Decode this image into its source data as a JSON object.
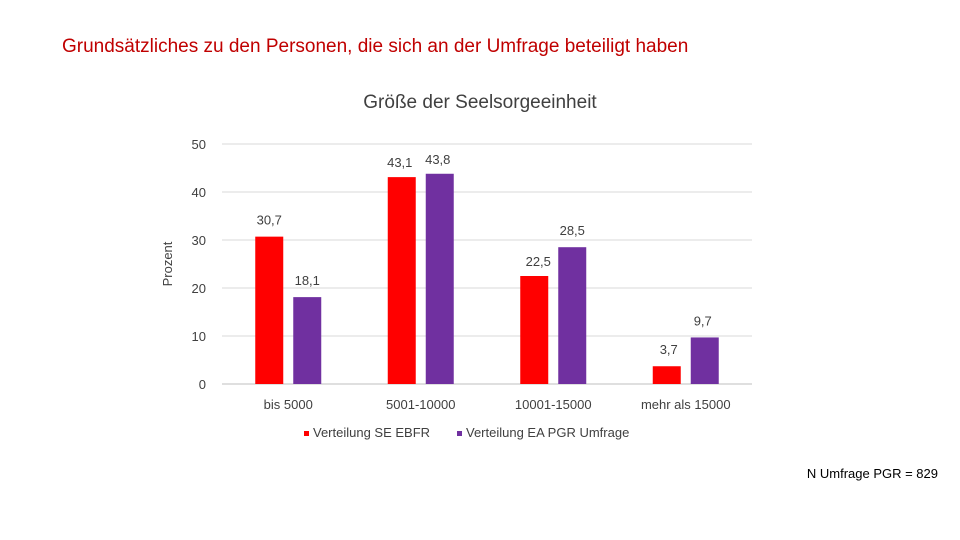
{
  "slide_title": "Grundsätzliches zu den Personen, die sich an der Umfrage beteiligt haben",
  "footnote": "N Umfrage PGR = 829",
  "colors": {
    "title": "#c00000",
    "series1": "#ff0000",
    "series2": "#7030a0",
    "grid": "#d9d9d9",
    "text": "#404040"
  },
  "chart_data": {
    "type": "bar",
    "title": "Größe der Seelsorgeeinheit",
    "xlabel": "",
    "ylabel": "Prozent",
    "ylim": [
      0,
      50
    ],
    "yticks": [
      0,
      10,
      20,
      30,
      40,
      50
    ],
    "grid": true,
    "legend_position": "bottom",
    "categories": [
      "bis 5000",
      "5001-10000",
      "10001-15000",
      "mehr als 15000"
    ],
    "series": [
      {
        "name": "Verteilung SE EBFR",
        "values": [
          30.7,
          43.1,
          22.5,
          3.7
        ],
        "labels": [
          "30,7",
          "43,1",
          "22,5",
          "3,7"
        ]
      },
      {
        "name": "Verteilung EA PGR Umfrage",
        "values": [
          18.1,
          43.8,
          28.5,
          9.7
        ],
        "labels": [
          "18,1",
          "43,8",
          "28,5",
          "9,7"
        ]
      }
    ]
  }
}
